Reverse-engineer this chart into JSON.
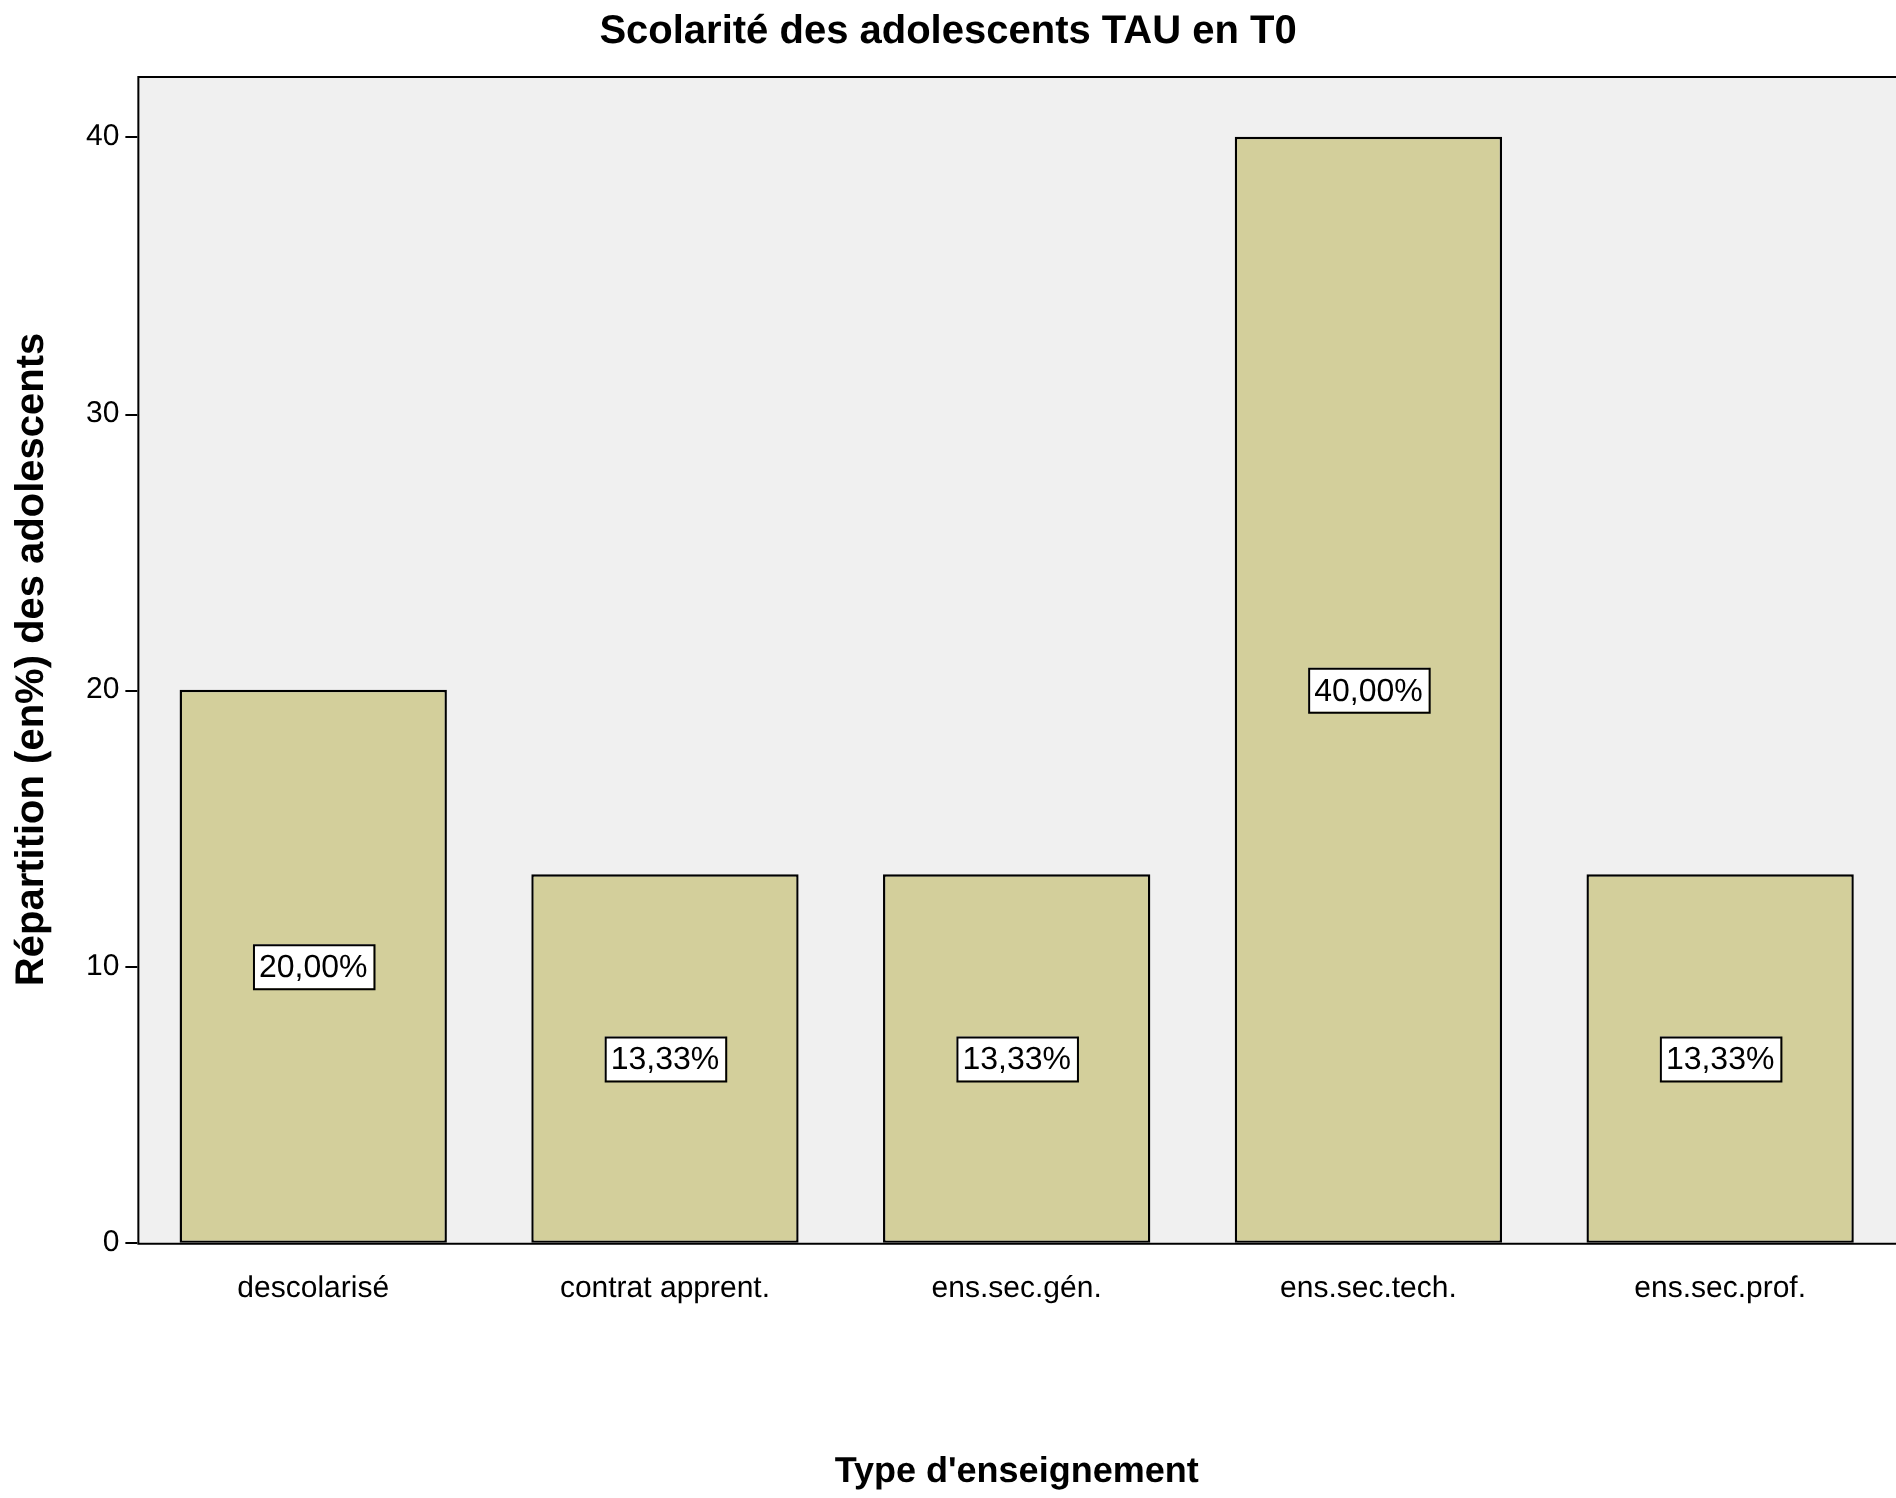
{
  "chart_data": {
    "type": "bar",
    "title": "Scolarité des adolescents TAU en T0",
    "xlabel": "Type d'enseignement",
    "ylabel": "Répartition (en%) des adolescents",
    "categories": [
      "descolarisé",
      "contrat apprent.",
      "ens.sec.gén.",
      "ens.sec.tech.",
      "ens.sec.prof."
    ],
    "values": [
      20,
      13.33,
      13.33,
      40,
      13.33
    ],
    "value_labels": [
      "20,00%",
      "13,33%",
      "13,33%",
      "40,00%",
      "13,33%"
    ],
    "color": "#d3cf9b",
    "ylim": [
      0,
      42.2
    ],
    "yticks": [
      0,
      10,
      20,
      30,
      40
    ],
    "grid": false,
    "legend": false
  }
}
